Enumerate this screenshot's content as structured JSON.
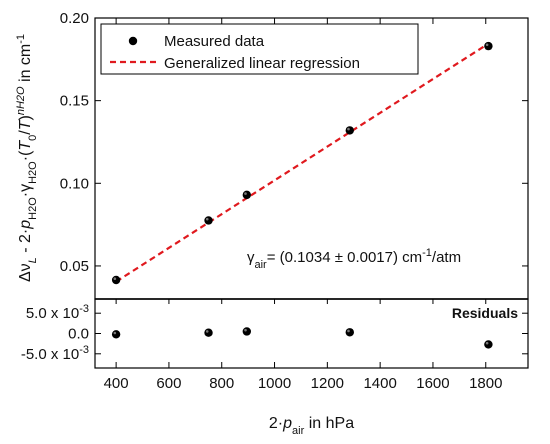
{
  "chart_data": {
    "type": "scatter",
    "xlabel": {
      "pre": "2·p",
      "sub": "air",
      "post": " in hPa"
    },
    "ylabel": "Δν_L − 2·p_H2O·γ_H2O·(T0/T)^n_H2O in cm⁻¹",
    "xlim": [
      320,
      1960
    ],
    "main_ylim": [
      0.03,
      0.2
    ],
    "residual_ylim": [
      -0.0085,
      0.0085
    ],
    "x_ticks": [
      400,
      600,
      800,
      1000,
      1200,
      1400,
      1600,
      1800
    ],
    "main_y_ticks": [
      "0.05",
      "0.10",
      "0.15",
      "0.20"
    ],
    "residual_y_ticks": [
      {
        "value": 0.005,
        "label": "5.0 x 10",
        "exp": "-3"
      },
      {
        "value": 0.0,
        "label": "0.0",
        "exp": ""
      },
      {
        "value": -0.005,
        "label": "-5.0 x 10",
        "exp": "-3"
      }
    ],
    "series": [
      {
        "name": "Measured data",
        "x": [
          400,
          750,
          895,
          1285,
          1810
        ],
        "y": [
          0.0415,
          0.0775,
          0.093,
          0.132,
          0.183
        ],
        "color": "#000000"
      },
      {
        "name": "Generalized linear regression",
        "type": "line",
        "x": [
          400,
          1810
        ],
        "y": [
          0.0405,
          0.1845
        ],
        "color": "#e0191e",
        "dash": "dashed"
      }
    ],
    "residuals": {
      "label": "Residuals",
      "x": [
        400,
        750,
        895,
        1285,
        1810
      ],
      "y": [
        -0.0002,
        0.0002,
        0.0005,
        0.0003,
        -0.0027
      ]
    },
    "annotation": {
      "symbol": "γ",
      "sub": "air",
      "text": "= (0.1034 ± 0.0017) cm",
      "sup": "-1",
      "tail": "/atm"
    },
    "legend_position": "top-left",
    "grid": false
  }
}
